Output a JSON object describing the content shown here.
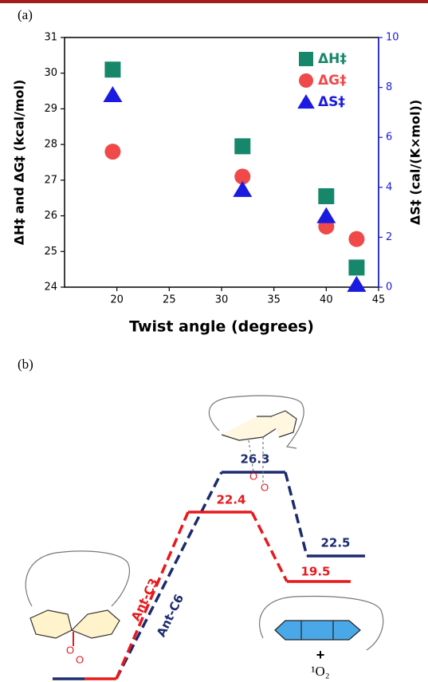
{
  "panel_a_label": "(a)",
  "chart_data": {
    "type": "scatter",
    "x_label": "Twist angle (degrees)",
    "y_label": "ΔH‡ and ΔG‡ (kcal/mol)",
    "y2_label": "ΔS‡ (cal/(K×mol))",
    "x": [
      19.6,
      32.0,
      40.0,
      42.9
    ],
    "xlim": [
      15,
      45
    ],
    "xticks": [
      20,
      25,
      30,
      35,
      40,
      45
    ],
    "ylim": [
      24,
      31
    ],
    "yticks": [
      24,
      25,
      26,
      27,
      28,
      29,
      30,
      31
    ],
    "y2lim": [
      0,
      10
    ],
    "y2ticks": [
      0,
      2,
      4,
      6,
      8,
      10
    ],
    "y2color": "#1a1ae0",
    "legend": "upper right",
    "series": [
      {
        "name": "ΔH‡",
        "color": "#17876b",
        "marker": "square",
        "values": [
          30.1,
          27.95,
          26.55,
          24.55
        ]
      },
      {
        "name": "ΔG‡",
        "color": "#f0494a",
        "marker": "circle",
        "values": [
          27.8,
          27.1,
          25.7,
          25.35
        ]
      },
      {
        "name": "ΔS‡",
        "color": "#1a1ae0",
        "marker": "triangle",
        "axis": "y2",
        "values": [
          7.7,
          3.9,
          2.85,
          0.1
        ]
      }
    ]
  },
  "diagram": {
    "label": "(b)",
    "ts_energy": "26.3",
    "c6_product_energy": "22.5",
    "c3_ts_energy": "22.4",
    "product_energy": "19.5",
    "path_c3": "Ant-C3",
    "path_c6": "Ant-C6",
    "ts_oxygens": [
      "O",
      "O"
    ],
    "reactant_oxygens": [
      "O",
      "O"
    ],
    "plus": "+",
    "singlet_oxygen": "¹O₂"
  }
}
